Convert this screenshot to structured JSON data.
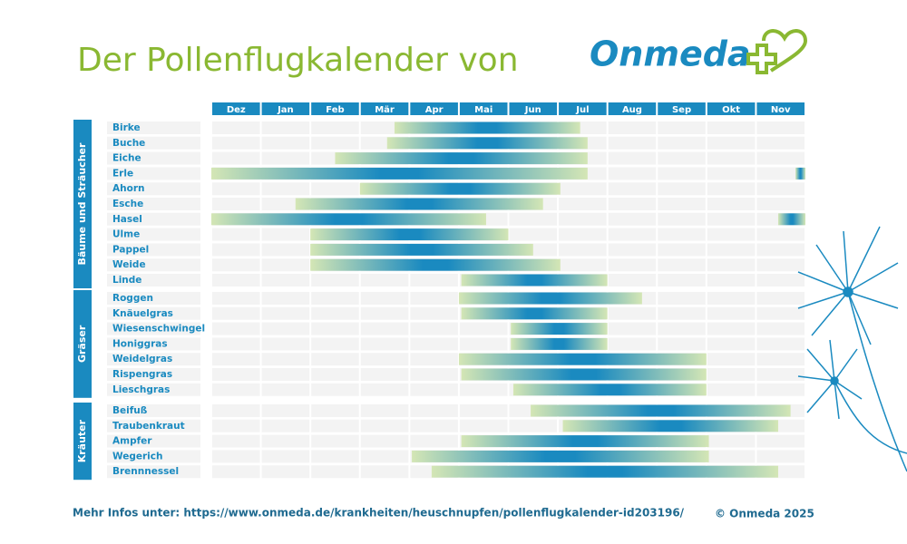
{
  "chart_data": {
    "type": "range_bar",
    "title": "Der Pollenflugkalender von",
    "subtitle": "Onmeda",
    "source": "Mehr Infos unter: https://www.onmeda.de/krankheiten/heuschnupfen/pollenflugkalender-id203196/",
    "copyright": "© Onmeda 2025",
    "categories": [
      "Dez",
      "Jan",
      "Feb",
      "Mär",
      "Apr",
      "Mai",
      "Jun",
      "Jul",
      "Aug",
      "Sep",
      "Okt",
      "Nov"
    ],
    "xlim": [
      0,
      12
    ],
    "color": "#1a8ac0",
    "groups": [
      {
        "name": "Bäume und Sträucher",
        "items": [
          {
            "name": "Birke",
            "ranges": [
              [
                3.7,
                7.45
              ]
            ]
          },
          {
            "name": "Buche",
            "ranges": [
              [
                3.55,
                7.6
              ]
            ]
          },
          {
            "name": "Eiche",
            "ranges": [
              [
                2.5,
                7.6
              ]
            ]
          },
          {
            "name": "Erle",
            "ranges": [
              [
                0,
                7.6
              ],
              [
                11.8,
                12
              ]
            ]
          },
          {
            "name": "Ahorn",
            "ranges": [
              [
                3.0,
                7.05
              ]
            ]
          },
          {
            "name": "Esche",
            "ranges": [
              [
                1.7,
                6.7
              ]
            ]
          },
          {
            "name": "Hasel",
            "ranges": [
              [
                0,
                5.55
              ],
              [
                11.45,
                12
              ]
            ]
          },
          {
            "name": "Ulme",
            "ranges": [
              [
                2.0,
                6.0
              ]
            ]
          },
          {
            "name": "Pappel",
            "ranges": [
              [
                2.0,
                6.5
              ]
            ]
          },
          {
            "name": "Weide",
            "ranges": [
              [
                2.0,
                7.05
              ]
            ]
          },
          {
            "name": "Linde",
            "ranges": [
              [
                5.05,
                8.0
              ]
            ]
          }
        ]
      },
      {
        "name": "Gräser",
        "items": [
          {
            "name": "Roggen",
            "ranges": [
              [
                5.0,
                8.7
              ]
            ]
          },
          {
            "name": "Knäuelgras",
            "ranges": [
              [
                5.05,
                8.0
              ]
            ]
          },
          {
            "name": "Wiesenschwingel",
            "ranges": [
              [
                6.05,
                8.0
              ]
            ]
          },
          {
            "name": "Honiggras",
            "ranges": [
              [
                6.05,
                8.0
              ]
            ]
          },
          {
            "name": "Weidelgras",
            "ranges": [
              [
                5.0,
                10.0
              ]
            ]
          },
          {
            "name": "Rispengras",
            "ranges": [
              [
                5.05,
                10.0
              ]
            ]
          },
          {
            "name": "Lieschgras",
            "ranges": [
              [
                6.1,
                10.0
              ]
            ]
          }
        ]
      },
      {
        "name": "Kräuter",
        "items": [
          {
            "name": "Beifuß",
            "ranges": [
              [
                6.45,
                11.7
              ]
            ]
          },
          {
            "name": "Traubenkraut",
            "ranges": [
              [
                7.1,
                11.45
              ]
            ]
          },
          {
            "name": "Ampfer",
            "ranges": [
              [
                5.05,
                10.05
              ]
            ]
          },
          {
            "name": "Wegerich",
            "ranges": [
              [
                4.05,
                10.05
              ]
            ]
          },
          {
            "name": "Brennnessel",
            "ranges": [
              [
                4.45,
                11.45
              ]
            ]
          }
        ]
      }
    ]
  }
}
